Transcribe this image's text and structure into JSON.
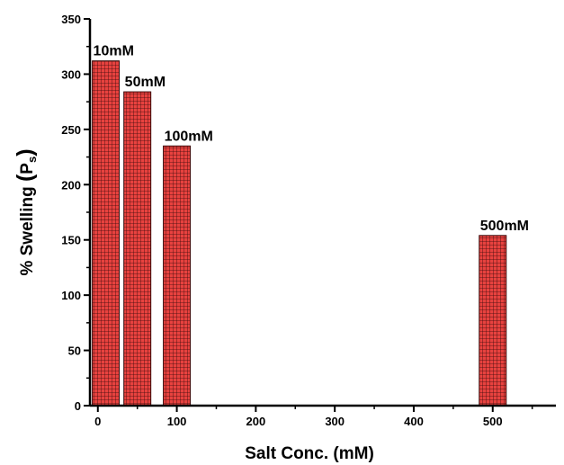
{
  "chart_data": {
    "type": "bar",
    "x": [
      10,
      50,
      100,
      500
    ],
    "values": [
      312,
      284,
      235,
      154
    ],
    "data_labels": [
      "10mM",
      "50mM",
      "100mM",
      "500mM"
    ],
    "xlabel": "Salt Conc. (mM)",
    "ylabel_main": "% Swelling ",
    "ylabel_paren_open": "(",
    "ylabel_sym": "P",
    "ylabel_sub": "s",
    "ylabel_paren_close": ")",
    "xlim": [
      -10,
      580
    ],
    "ylim": [
      0,
      350
    ],
    "xticks": [
      0,
      100,
      200,
      300,
      400,
      500
    ],
    "yticks": [
      0,
      50,
      100,
      150,
      200,
      250,
      300,
      350
    ],
    "bar_color": "#e8423f",
    "grid_line_color": "#3a0a0a",
    "grid": false,
    "legend": "none"
  }
}
